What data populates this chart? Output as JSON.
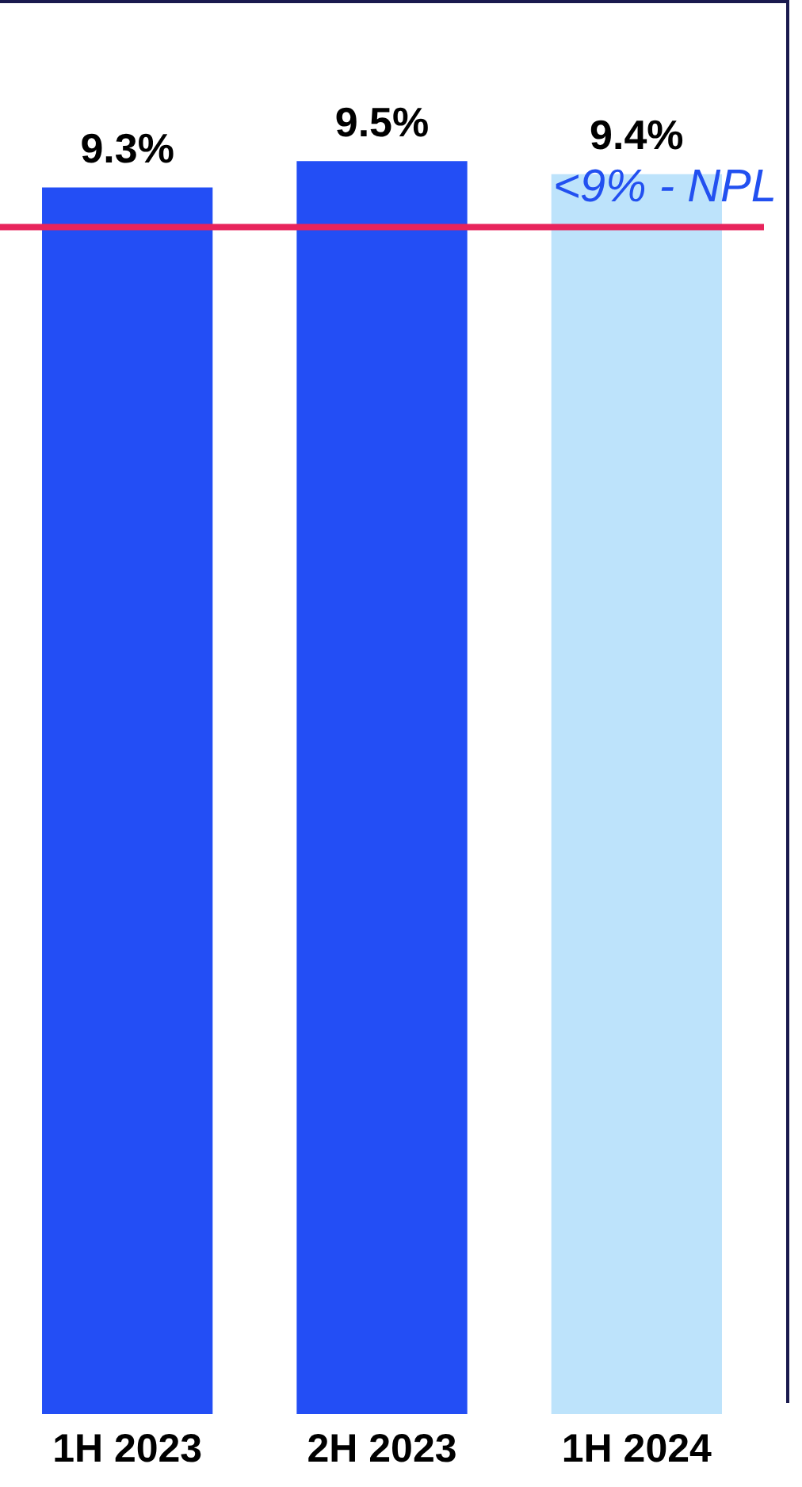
{
  "chart_data": {
    "type": "bar",
    "categories": [
      "1H 2023",
      "2H 2023",
      "1H 2024"
    ],
    "values": [
      9.3,
      9.5,
      9.4
    ],
    "colors": [
      "#234ef5",
      "#234ef5",
      "#bde3fb"
    ],
    "value_labels": [
      "9.3%",
      "9.5%",
      "9.4%"
    ],
    "tick_labels": "x",
    "grid": false,
    "legend": false,
    "ref_lines": [
      {
        "axis": "y",
        "value": 9,
        "label": "<9% - NPL",
        "color": "#e8245c"
      }
    ]
  }
}
